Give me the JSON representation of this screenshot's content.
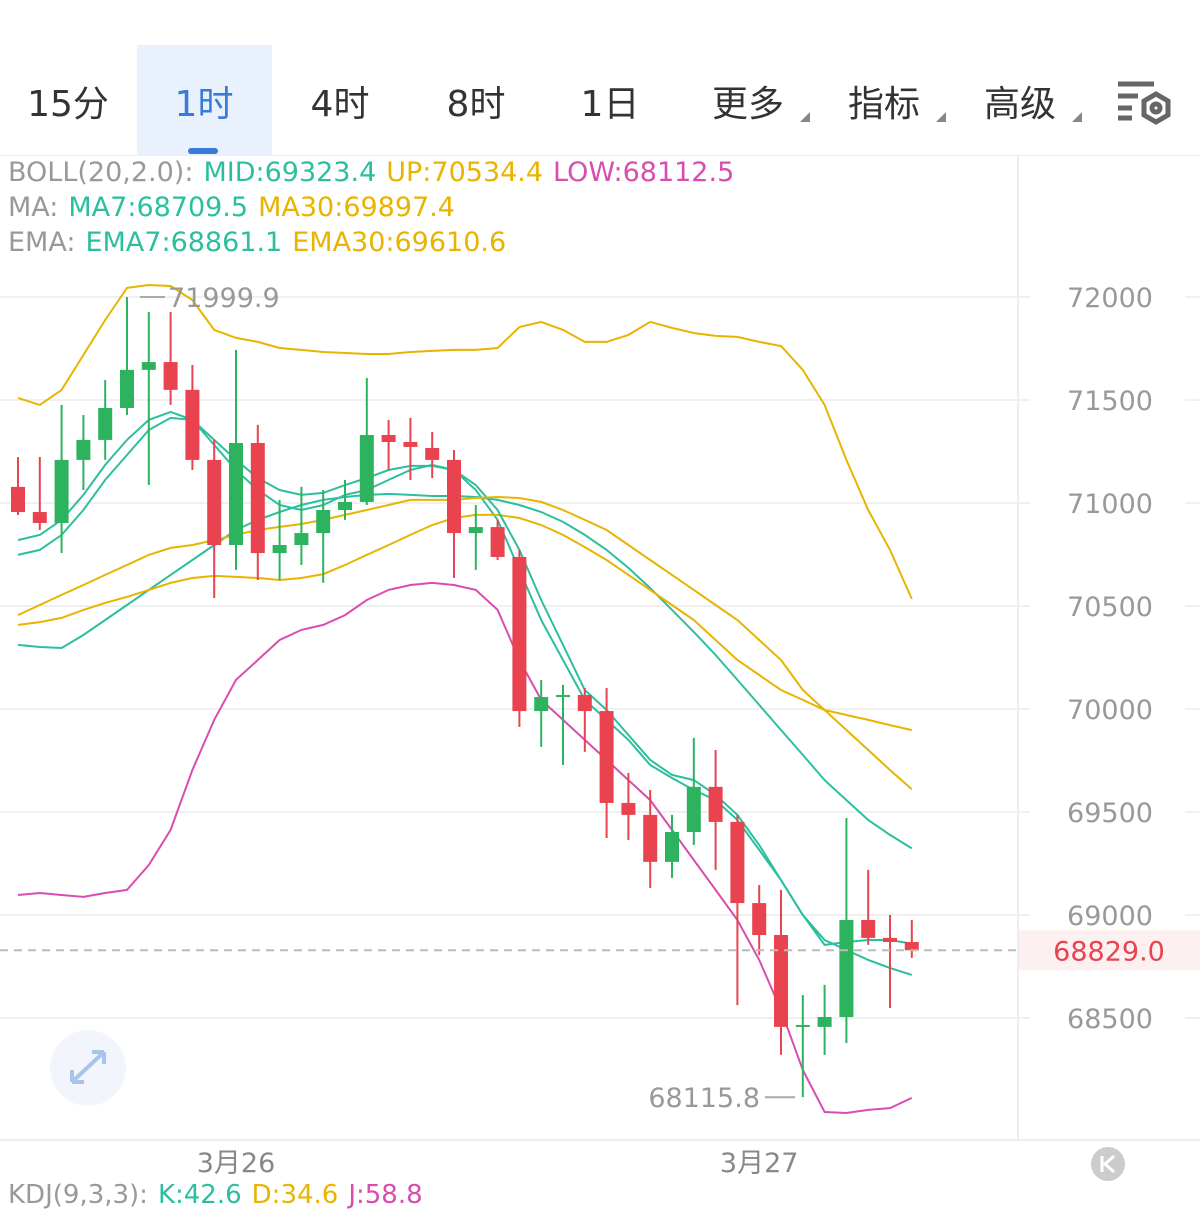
{
  "tabs": [
    "15分",
    "1时",
    "4时",
    "8时",
    "1日",
    "更多",
    "指标",
    "高级"
  ],
  "kdj": {
    "label": "KDJ(9,3,3):",
    "items": [
      {
        "name": "K:",
        "value": 42.6,
        "color": "#2bbf9f"
      },
      {
        "name": "D:",
        "value": 34.6,
        "color": "#e8b400"
      },
      {
        "name": "J:",
        "value": 58.8,
        "color": "#d84db0"
      }
    ]
  },
  "chart_data": {
    "type": "candlestick",
    "categories": [
      null,
      null,
      null,
      null,
      null,
      null,
      null,
      null,
      null,
      null,
      "3月26",
      null,
      null,
      null,
      null,
      null,
      null,
      null,
      null,
      null,
      null,
      null,
      null,
      null,
      null,
      null,
      null,
      null,
      null,
      null,
      null,
      null,
      null,
      null,
      "3月27",
      null,
      null,
      null,
      null,
      null,
      null,
      null
    ],
    "open": [
      71078,
      70956,
      70903,
      71209,
      71306,
      71461,
      71646,
      71684,
      71549,
      71209,
      70796,
      71291,
      70757,
      70796,
      70854,
      70966,
      71005,
      71330,
      71296,
      71267,
      71209,
      70854,
      70883,
      70738,
      69990,
      70058,
      70068,
      69990,
      69544,
      69486,
      69258,
      69403,
      69622,
      69452,
      69058,
      68903,
      68457,
      68457,
      68505,
      68976,
      68889,
      68869
    ],
    "high": [
      71223,
      71223,
      71476,
      71427,
      71597,
      71999.9,
      71927,
      71927,
      71670,
      71306,
      71743,
      71379,
      71015,
      71078,
      71063,
      71112,
      71607,
      71403,
      71413,
      71345,
      71257,
      70990,
      70918,
      70772,
      70141,
      70117,
      70102,
      70102,
      69690,
      69607,
      69486,
      69860,
      69801,
      69486,
      69146,
      69122,
      68612,
      68661,
      69471,
      69219,
      69000,
      68976
    ],
    "low": [
      70942,
      70869,
      70757,
      71063,
      71209,
      71427,
      71087,
      71476,
      71160,
      70539,
      70675,
      70626,
      70626,
      70699,
      70612,
      70918,
      70990,
      71160,
      71112,
      71121,
      70636,
      70675,
      70723,
      69913,
      69816,
      69728,
      69792,
      69374,
      69364,
      69131,
      69180,
      69340,
      69219,
      68563,
      68806,
      68321,
      68115.8,
      68321,
      68379,
      68855,
      68549,
      68792
    ],
    "close": [
      70956,
      70903,
      71209,
      71306,
      71461,
      71646,
      71684,
      71549,
      71209,
      70796,
      71291,
      70757,
      70796,
      70854,
      70966,
      71005,
      71330,
      71296,
      71272,
      71209,
      70854,
      70883,
      70738,
      69990,
      70058,
      70068,
      69990,
      69544,
      69486,
      69258,
      69403,
      69622,
      69452,
      69058,
      68903,
      68457,
      68466,
      68505,
      68976,
      68889,
      68869,
      68829
    ],
    "up_color": "#2db35d",
    "down_color": "#e8434f",
    "ylim": [
      67908,
      72689
    ],
    "yticks": [
      68500,
      69000,
      69500,
      70000,
      70500,
      71000,
      71500,
      72000
    ],
    "grid": true,
    "last_price": {
      "value": 68829.0,
      "label": "68829.0"
    },
    "high_marker": 71999.9,
    "low_marker": 68115.8,
    "overlays": [
      {
        "label": "BOLL(20,2.0):",
        "series": [
          {
            "name": "MID:",
            "value": 69323.4,
            "color": "#2bbf9f",
            "values": [
              70311,
              70301,
              70296,
              70359,
              70432,
              70505,
              70578,
              70651,
              70723,
              70796,
              70869,
              70918,
              70956,
              70990,
              71015,
              71029,
              71039,
              71044,
              71039,
              71034,
              71034,
              71029,
              71015,
              70990,
              70956,
              70908,
              70845,
              70772,
              70685,
              70587,
              70481,
              70374,
              70262,
              70141,
              70020,
              69898,
              69777,
              69655,
              69558,
              69461,
              69389,
              69323.4
            ]
          },
          {
            "name": "UP:",
            "value": 70534.4,
            "color": "#e8b400",
            "values": [
              71510,
              71476,
              71549,
              71718,
              71888,
              72044,
              72058,
              72053,
              71985,
              71840,
              71801,
              71782,
              71752,
              71743,
              71733,
              71728,
              71723,
              71723,
              71733,
              71738,
              71743,
              71743,
              71752,
              71854,
              71879,
              71840,
              71782,
              71782,
              71816,
              71879,
              71850,
              71825,
              71811,
              71806,
              71782,
              71762,
              71646,
              71476,
              71209,
              70966,
              70772,
              70534.4
            ]
          },
          {
            "name": "LOW:",
            "value": 68112.5,
            "color": "#d84db0",
            "values": [
              69097,
              69107,
              69097,
              69088,
              69107,
              69122,
              69243,
              69413,
              69704,
              69947,
              70141,
              70238,
              70335,
              70384,
              70408,
              70456,
              70529,
              70578,
              70602,
              70612,
              70602,
              70578,
              70481,
              70238,
              70044,
              69947,
              69850,
              69753,
              69655,
              69558,
              69413,
              69267,
              69122,
              68976,
              68782,
              68539,
              68248,
              68044,
              68039,
              68054,
              68063,
              68112.5
            ]
          }
        ]
      },
      {
        "label": "MA:",
        "series": [
          {
            "name": "MA7:",
            "value": 68709.5,
            "color": "#2bbf9f",
            "values": [
              70748,
              70772,
              70845,
              70966,
              71112,
              71233,
              71354,
              71413,
              71403,
              71282,
              71160,
              71063,
              70990,
              70966,
              70990,
              71039,
              71063,
              71112,
              71160,
              71185,
              71160,
              71063,
              70918,
              70675,
              70432,
              70238,
              70044,
              69947,
              69850,
              69728,
              69665,
              69607,
              69558,
              69461,
              69316,
              69170,
              69000,
              68879,
              68830,
              68782,
              68743,
              68709.5
            ]
          },
          {
            "name": "MA30:",
            "value": 69897.4,
            "color": "#e8b400",
            "values": [
              70408,
              70422,
              70442,
              70481,
              70515,
              70544,
              70578,
              70612,
              70636,
              70646,
              70641,
              70636,
              70626,
              70636,
              70655,
              70699,
              70748,
              70796,
              70845,
              70893,
              70927,
              70942,
              70942,
              70927,
              70893,
              70845,
              70786,
              70723,
              70651,
              70578,
              70505,
              70432,
              70335,
              70238,
              70165,
              70092,
              70044,
              69995,
              69971,
              69947,
              69922,
              69897.4
            ]
          }
        ]
      },
      {
        "label": "EMA:",
        "series": [
          {
            "name": "EMA7:",
            "value": 68861.1,
            "color": "#2bbf9f",
            "values": [
              70820,
              70845,
              70918,
              71039,
              71185,
              71306,
              71403,
              71442,
              71403,
              71306,
              71209,
              71121,
              71063,
              71039,
              71049,
              71087,
              71121,
              71160,
              71180,
              71180,
              71160,
              71087,
              70966,
              70772,
              70529,
              70311,
              70092,
              69995,
              69874,
              69753,
              69680,
              69655,
              69583,
              69486,
              69340,
              69170,
              69000,
              68855,
              68869,
              68879,
              68879,
              68861.1
            ]
          },
          {
            "name": "EMA30:",
            "value": 69610.6,
            "color": "#e8b400",
            "values": [
              70456,
              70505,
              70554,
              70602,
              70651,
              70699,
              70748,
              70782,
              70796,
              70820,
              70845,
              70869,
              70884,
              70898,
              70918,
              70942,
              70966,
              70990,
              71015,
              71015,
              71015,
              71024,
              71029,
              71024,
              71005,
              70966,
              70918,
              70869,
              70796,
              70723,
              70651,
              70578,
              70505,
              70432,
              70335,
              70238,
              70092,
              69995,
              69898,
              69801,
              69704,
              69610.6
            ]
          }
        ]
      }
    ]
  }
}
